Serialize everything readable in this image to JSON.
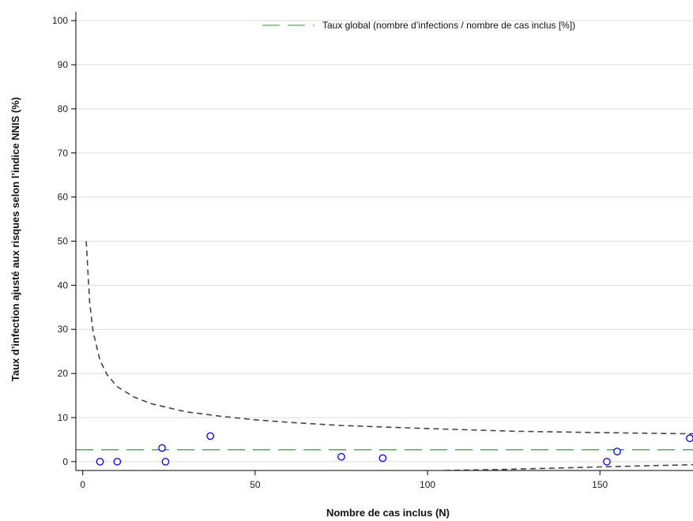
{
  "chart_data": {
    "type": "scatter",
    "title": "",
    "xlabel": "Nombre de cas inclus (N)",
    "ylabel": "Taux d’infection ajusté aux risques selon l’indice NNIS (%)",
    "xlim": [
      -2,
      177
    ],
    "ylim": [
      -2,
      102
    ],
    "x_ticks": [
      0,
      50,
      100,
      150
    ],
    "y_ticks": [
      0,
      10,
      20,
      30,
      40,
      50,
      60,
      70,
      80,
      90,
      100
    ],
    "grid": "horizontal",
    "legend_position": "top-right",
    "legend": [
      {
        "label": "Taux global (nombre d’infections / nombre de cas inclus [%])",
        "color": "#2e9e2e"
      }
    ],
    "overall_rate": 2.7,
    "series": [
      {
        "points": [
          {
            "x": 5,
            "y": 0
          },
          {
            "x": 10,
            "y": 0
          },
          {
            "x": 23,
            "y": 3.1
          },
          {
            "x": 24,
            "y": 0
          },
          {
            "x": 37,
            "y": 5.8
          },
          {
            "x": 75,
            "y": 1.1
          },
          {
            "x": 87,
            "y": 0.8
          },
          {
            "x": 152,
            "y": 0
          },
          {
            "x": 155,
            "y": 2.3
          },
          {
            "x": 177,
            "y": 5.3
          }
        ],
        "color": "#0000ff"
      }
    ],
    "funnel_upper": [
      {
        "x": 1,
        "y": 50.0
      },
      {
        "x": 2,
        "y": 36.0
      },
      {
        "x": 3,
        "y": 29.5
      },
      {
        "x": 5,
        "y": 23.0
      },
      {
        "x": 7,
        "y": 19.8
      },
      {
        "x": 10,
        "y": 17.0
      },
      {
        "x": 15,
        "y": 14.6
      },
      {
        "x": 20,
        "y": 13.1
      },
      {
        "x": 30,
        "y": 11.3
      },
      {
        "x": 40,
        "y": 10.3
      },
      {
        "x": 50,
        "y": 9.5
      },
      {
        "x": 60,
        "y": 8.9
      },
      {
        "x": 75,
        "y": 8.2
      },
      {
        "x": 100,
        "y": 7.5
      },
      {
        "x": 125,
        "y": 6.9
      },
      {
        "x": 150,
        "y": 6.6
      },
      {
        "x": 177,
        "y": 6.3
      }
    ],
    "funnel_lower": [
      {
        "x": 105,
        "y": -2.0
      },
      {
        "x": 120,
        "y": -1.8
      },
      {
        "x": 135,
        "y": -1.5
      },
      {
        "x": 150,
        "y": -1.2
      },
      {
        "x": 165,
        "y": -0.9
      },
      {
        "x": 177,
        "y": -0.7
      }
    ],
    "colors": {
      "points": "#0000ff",
      "overall": "#2e9e2e",
      "funnel": "#444444",
      "grid": "#dedede"
    }
  }
}
